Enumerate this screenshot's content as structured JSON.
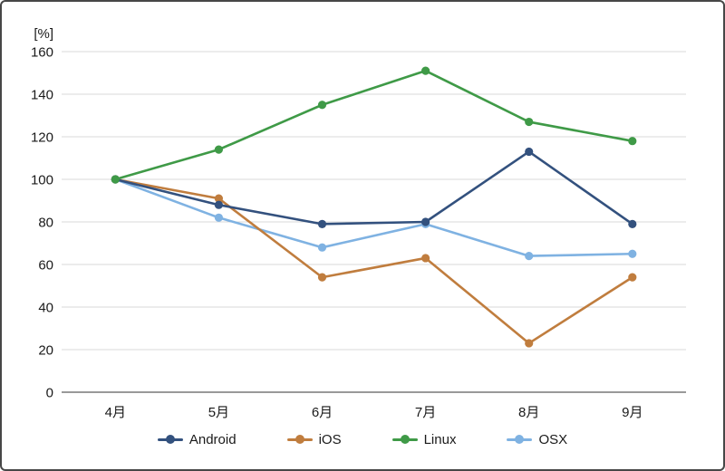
{
  "chart": {
    "grid_color": "#d9d9d9",
    "axis_color": "#999999",
    "text_color": "#1a1a1a",
    "border_color": "#474747",
    "background_color": "#ffffff"
  },
  "chart_data": {
    "type": "line",
    "title": "",
    "xlabel": "",
    "ylabel": "[%]",
    "categories": [
      "4月",
      "5月",
      "6月",
      "7月",
      "8月",
      "9月"
    ],
    "series": [
      {
        "name": "Android",
        "color": "#33517E",
        "values": [
          100,
          88,
          79,
          80,
          113,
          79
        ]
      },
      {
        "name": "iOS",
        "color": "#C07D3E",
        "values": [
          100,
          91,
          54,
          63,
          23,
          54
        ]
      },
      {
        "name": "Linux",
        "color": "#3F9A47",
        "values": [
          100,
          114,
          135,
          151,
          127,
          118
        ]
      },
      {
        "name": "OSX",
        "color": "#7FB2E2",
        "values": [
          100,
          82,
          68,
          79,
          64,
          65
        ]
      }
    ],
    "ylim": [
      0,
      160
    ],
    "ytick_step": 20,
    "ytick_labels": [
      "0",
      "20",
      "40",
      "60",
      "80",
      "100",
      "120",
      "140",
      "160"
    ],
    "grid": true,
    "legend_position": "bottom"
  }
}
